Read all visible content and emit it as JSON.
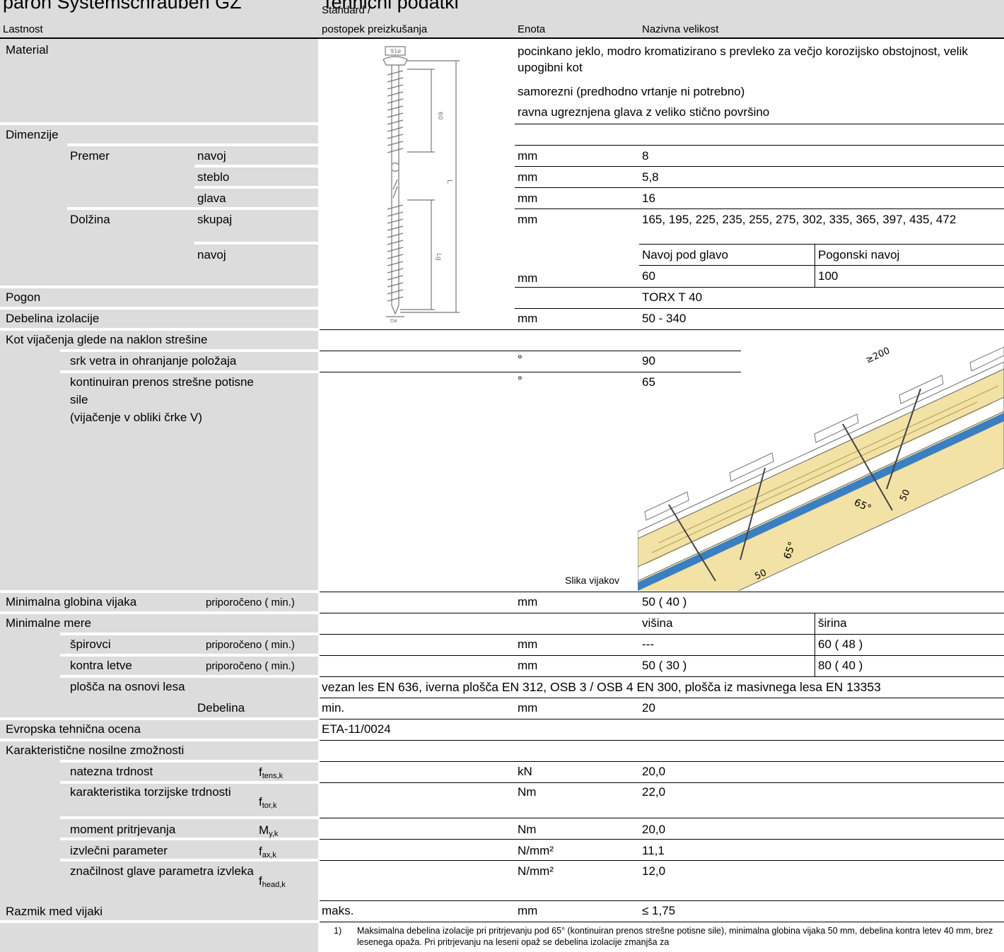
{
  "header": {
    "product_title": "paron Systemschrauben GZ",
    "section_title": "Tehnični podatki",
    "col_property": "Lastnost",
    "col_standard_1": "Standard /",
    "col_standard_2": "postopek preizkušanja",
    "col_unit": "Enota",
    "col_value": "Nazivna velikost"
  },
  "material": {
    "label": "Material",
    "value_1": "pocinkano jeklo, modro kromatizirano s prevleko za večjo korozijsko obstojnost, velik upogibni kot",
    "value_2": "samorezni (predhodno vrtanje ni potrebno)",
    "value_3": "ravna ugreznjena glava z veliko stično površino"
  },
  "screw_drawing": {
    "label_top": "91ø",
    "label_thread": "60",
    "label_length": "L",
    "label_lg": "Lg",
    "label_bottom": "Dø"
  },
  "dimensions": {
    "label": "Dimenzije",
    "diameter": "Premer",
    "thread": "navoj",
    "shank": "steblo",
    "head": "glava",
    "length": "Dolžina",
    "total": "skupaj",
    "thread2": "navoj",
    "unit": "mm",
    "thread_val": "8",
    "shank_val": "5,8",
    "head_val": "16",
    "total_val": "165, 195, 225, 235, 255, 275, 302, 335, 365, 397, 435, 472",
    "sub_head_label": "Navoj pod glavo",
    "sub_drive_label": "Pogonski navoj",
    "sub_head_val": "60",
    "sub_drive_val": "100"
  },
  "drive": {
    "label": "Pogon",
    "value": "TORX T 40"
  },
  "insulation": {
    "label": "Debelina izolacije",
    "unit": "mm",
    "value": "50 - 340"
  },
  "angle": {
    "label": "Kot vijačenja glede na naklon strešine",
    "row1_label": "srk vetra in ohranjanje položaja",
    "row1_unit": "°",
    "row1_value": "90",
    "row2_label_1": "kontinuiran prenos strešne potisne",
    "row2_label_2": "sile",
    "row2_label_3": "(vijačenje v obliki črke V)",
    "row2_unit": "°",
    "row2_value": "65",
    "caption": "Slika vijakov",
    "dim_200": "≥200",
    "dim_65a": "65°",
    "dim_50a": "50",
    "dim_65b": "65°",
    "dim_50b": "50"
  },
  "min_depth": {
    "label": "Minimalna globina vijaka",
    "note": "priporočeno ( min.)",
    "unit": "mm",
    "value": "50 ( 40 )"
  },
  "min_dims": {
    "label": "Minimalne mere",
    "height": "višina",
    "width": "širina",
    "rafters": "špirovci",
    "rafters_note": "priporočeno ( min.)",
    "rafters_unit": "mm",
    "rafters_h": "---",
    "rafters_w": "60 ( 48 )",
    "counter": "kontra letve",
    "counter_note": "priporočeno ( min.)",
    "counter_unit": "mm",
    "counter_h": "50 ( 30 )",
    "counter_w": "80 ( 40 )",
    "board": "plošča na osnovi lesa",
    "board_value": "vezan les EN 636, iverna plošča EN 312, OSB 3 / OSB 4 EN 300, plošča iz masivnega lesa EN 13353",
    "thickness": "Debelina",
    "thickness_std": "min.",
    "thickness_unit": "mm",
    "thickness_val": "20"
  },
  "eta": {
    "label": "Evropska tehnična ocena",
    "value": "ETA-11/0024"
  },
  "capacities": {
    "label": "Karakteristične nosilne zmožnosti",
    "rows": [
      {
        "name": "natezna trdnost",
        "sym": "f",
        "sub": "tens,k",
        "unit": "kN",
        "value": "20,0"
      },
      {
        "name": "karakteristika torzijske trdnosti",
        "sym": "f",
        "sub": "tor,k",
        "unit": "Nm",
        "value": "22,0"
      },
      {
        "name": "moment pritrjevanja",
        "sym": "M",
        "sub": "y,k",
        "unit": "Nm",
        "value": "20,0"
      },
      {
        "name": "izvlečni parameter",
        "sym": "f",
        "sub": "ax,k",
        "unit": "N/mm²",
        "value": "11,1"
      },
      {
        "name": "značilnost glave parametra izvleka",
        "sym": "f",
        "sub": "head,k",
        "unit": "N/mm²",
        "value": "12,0"
      }
    ]
  },
  "spacing": {
    "label": "Razmik med vijaki",
    "std": "maks.",
    "unit": "mm",
    "value": "≤ 1,75"
  },
  "footnote": {
    "num": "1)",
    "text": "Maksimalna debelina izolacije pri pritrjevanju pod 65° (kontinuiran prenos strešne potisne sile), minimalna globina vijaka 50 mm, debelina kontra letev 40 mm, brez lesenega opaža. Pri pritrjevanju na leseni opaž se debelina izolacije zmanjša za"
  }
}
